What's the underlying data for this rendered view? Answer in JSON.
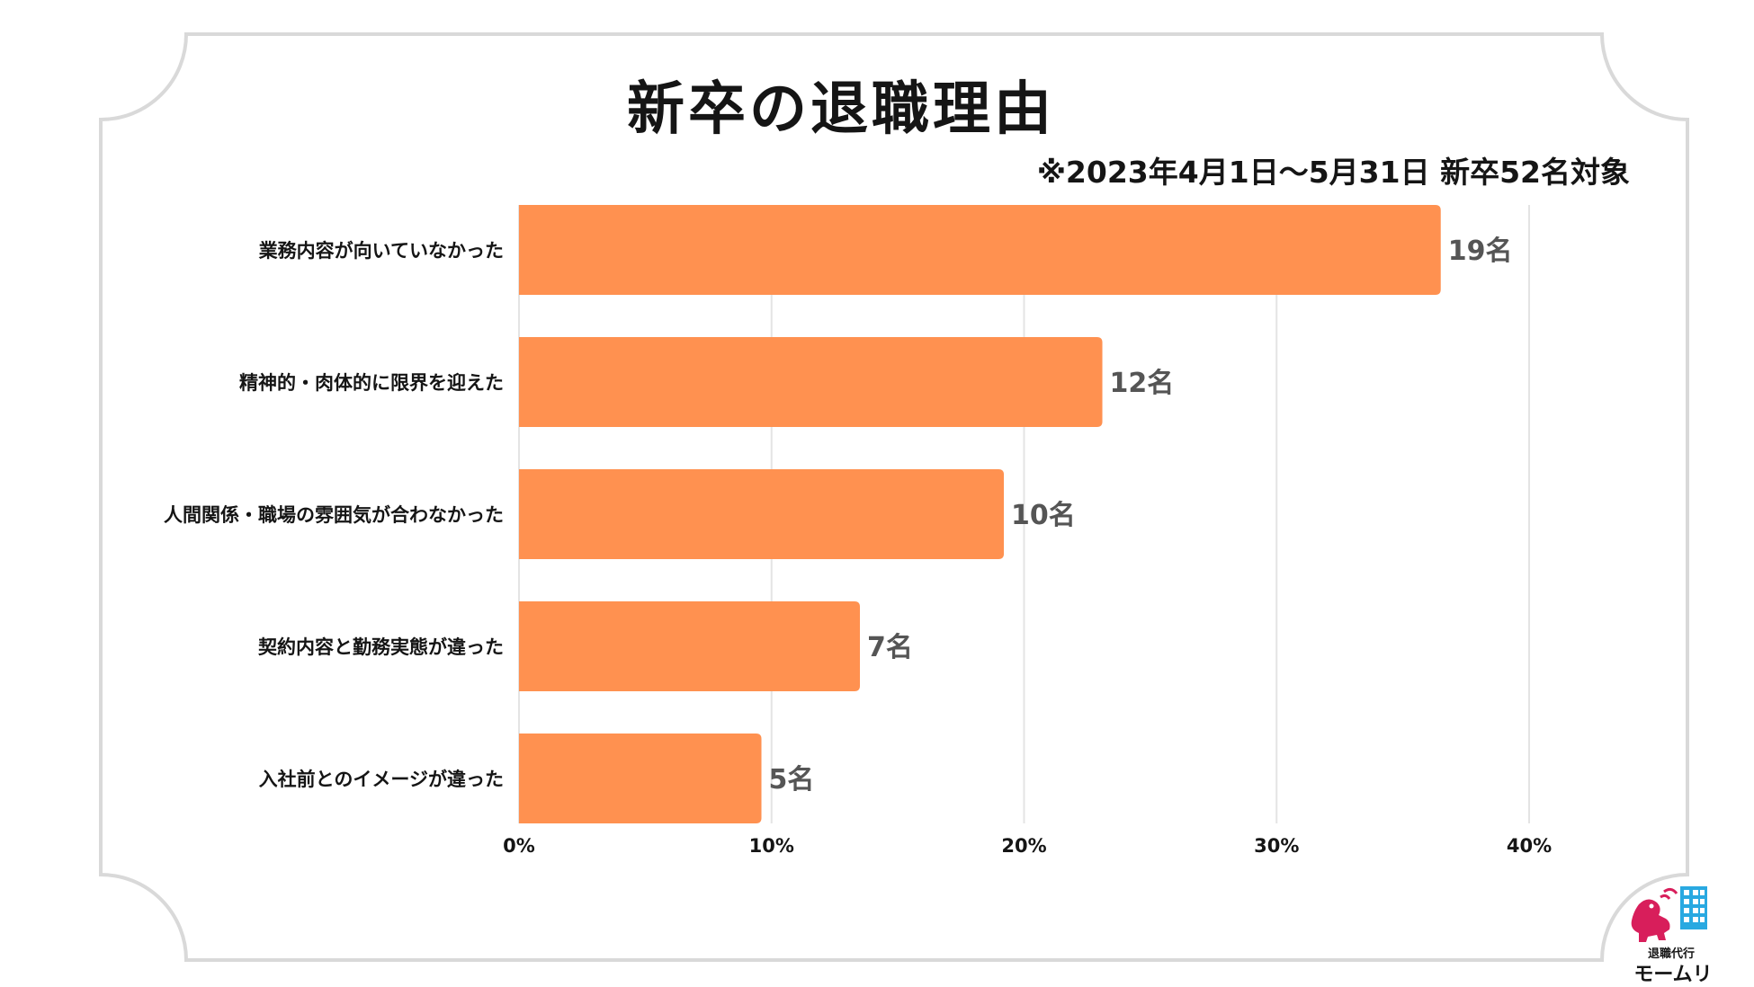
{
  "title": "新卒の退職理由",
  "subtitle": "※2023年4月1日〜5月31日 新卒52名対象",
  "logo": {
    "line1": "退職代行",
    "line2": "モームリ"
  },
  "colors": {
    "bar": "#FF9150",
    "grid": "#E4E4E4",
    "label": "#151515",
    "value": "#555555",
    "frame": "#D9D9D9"
  },
  "chart_data": {
    "type": "bar",
    "orientation": "horizontal",
    "categories": [
      "業務内容が向いていなかった",
      "精神的・肉体的に限界を迎えた",
      "人間関係・職場の雰囲気が合わなかった",
      "契約内容と勤務実態が違った",
      "入社前とのイメージが違った"
    ],
    "values": [
      36.5,
      23.1,
      19.2,
      13.5,
      9.6
    ],
    "value_labels": [
      "19名",
      "12名",
      "10名",
      "7名",
      "5名"
    ],
    "xlim": [
      0,
      40
    ],
    "xticks": [
      0,
      10,
      20,
      30,
      40
    ],
    "xtick_labels": [
      "0%",
      "10%",
      "20%",
      "30%",
      "40%"
    ],
    "grid": true
  }
}
